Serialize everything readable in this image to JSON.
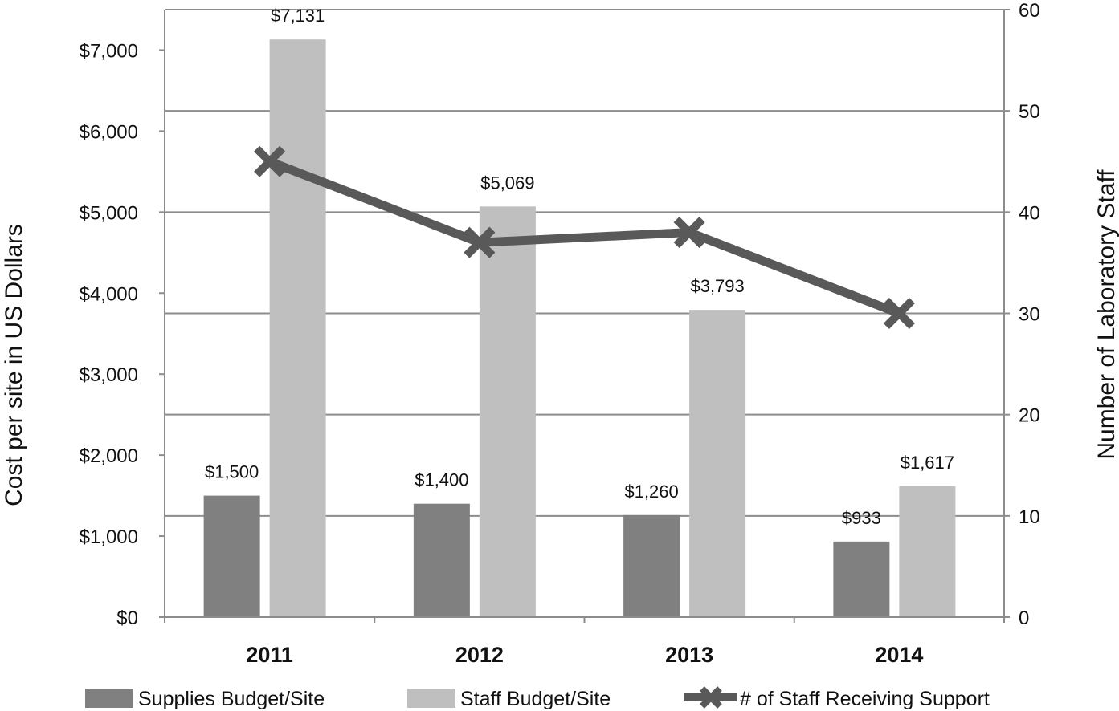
{
  "chart_data": {
    "type": "bar",
    "title": "",
    "categories": [
      "2011",
      "2012",
      "2013",
      "2014"
    ],
    "series": [
      {
        "name": "Supplies Budget/Site",
        "type": "bar",
        "axis": "left",
        "color": "#808080",
        "values": [
          1500,
          1400,
          1260,
          933
        ],
        "labels": [
          "$1,500",
          "$1,400",
          "$1,260",
          "$933"
        ]
      },
      {
        "name": "Staff Budget/Site",
        "type": "bar",
        "axis": "left",
        "color": "#bfbfbf",
        "values": [
          7131,
          5069,
          3793,
          1617
        ],
        "labels": [
          "$7,131",
          "$5,069",
          "$3,793",
          "$1,617"
        ]
      },
      {
        "name": "# of Staff Receiving Support",
        "type": "line",
        "axis": "right",
        "color": "#595959",
        "marker": "x",
        "values": [
          45,
          37,
          38,
          30
        ]
      }
    ],
    "left_axis": {
      "label": "Cost per site in US Dollars",
      "ylim": [
        0,
        7500
      ],
      "ticks": [
        0,
        1000,
        2000,
        3000,
        4000,
        5000,
        6000,
        7000
      ],
      "tick_labels": [
        "$0",
        "$1,000",
        "$2,000",
        "$3,000",
        "$4,000",
        "$5,000",
        "$6,000",
        "$7,000"
      ]
    },
    "right_axis": {
      "label": "Number of Laboratory Staff",
      "ylim": [
        0,
        60
      ],
      "ticks": [
        0,
        10,
        20,
        30,
        40,
        50,
        60
      ],
      "tick_labels": [
        "0",
        "10",
        "20",
        "30",
        "40",
        "50",
        "60"
      ]
    },
    "grid": true,
    "legend_position": "bottom"
  }
}
